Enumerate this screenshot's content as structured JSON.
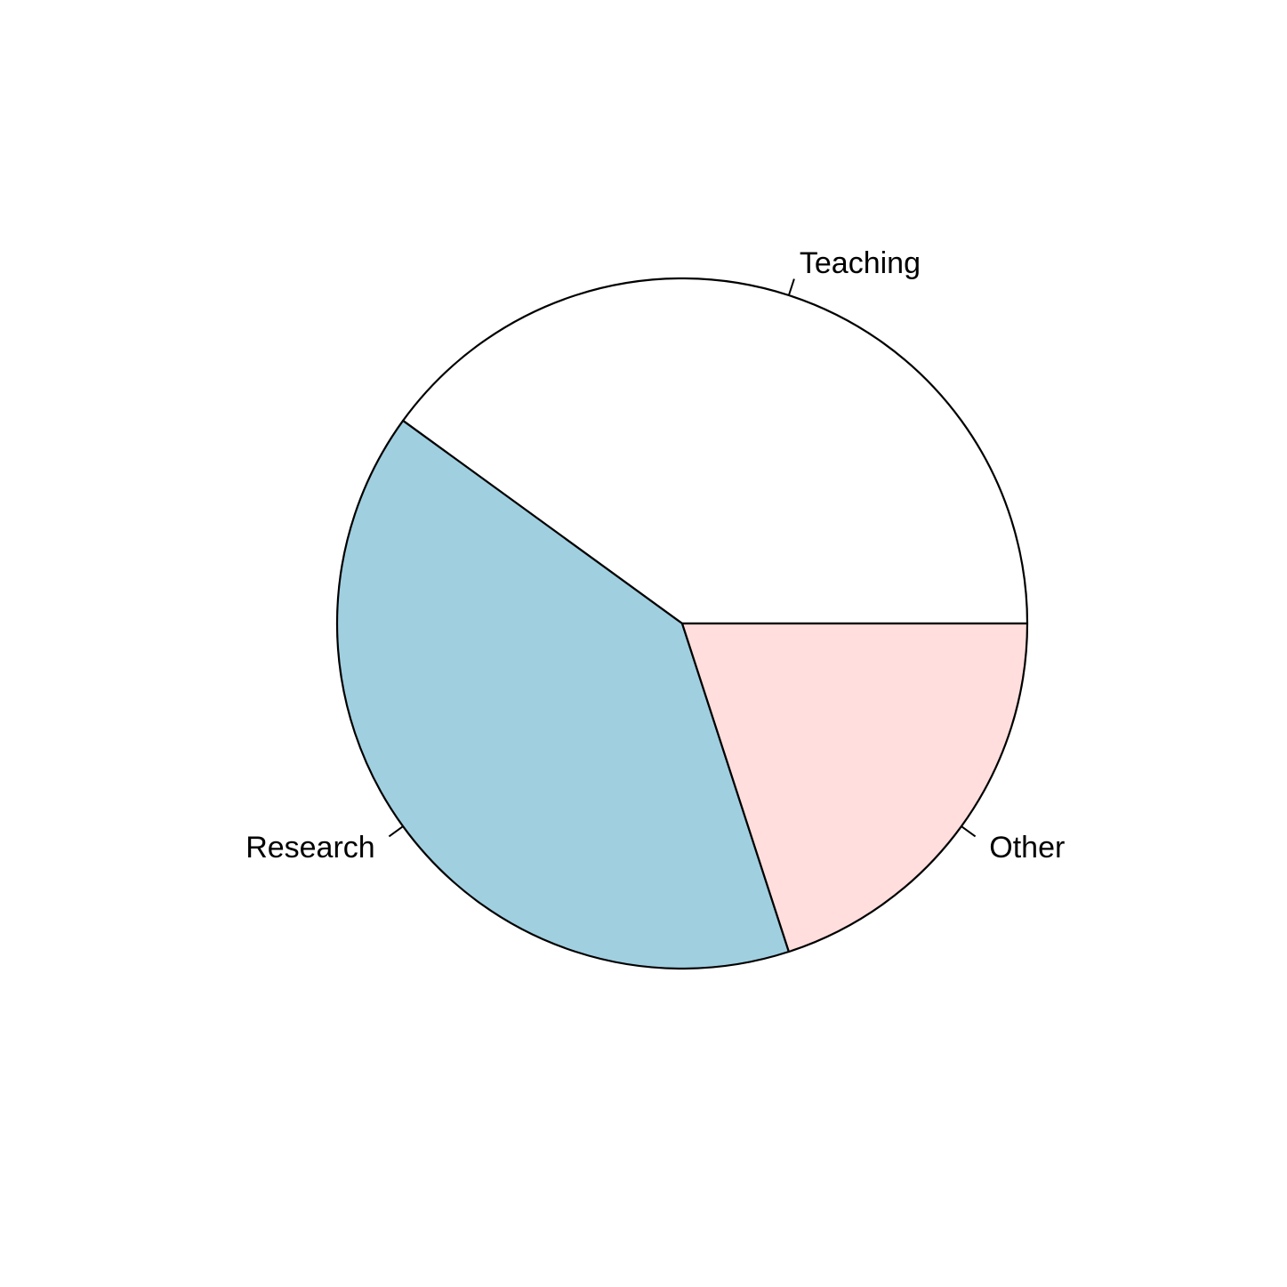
{
  "chart_data": {
    "type": "pie",
    "title": "",
    "start_angle_deg": 0,
    "direction": "counterclockwise",
    "slices": [
      {
        "label": "Teaching",
        "value": 40,
        "color": "#FFFFFF"
      },
      {
        "label": "Research",
        "value": 40,
        "color": "#A0CFE0"
      },
      {
        "label": "Other",
        "value": 20,
        "color": "#FFDEDD"
      }
    ]
  }
}
